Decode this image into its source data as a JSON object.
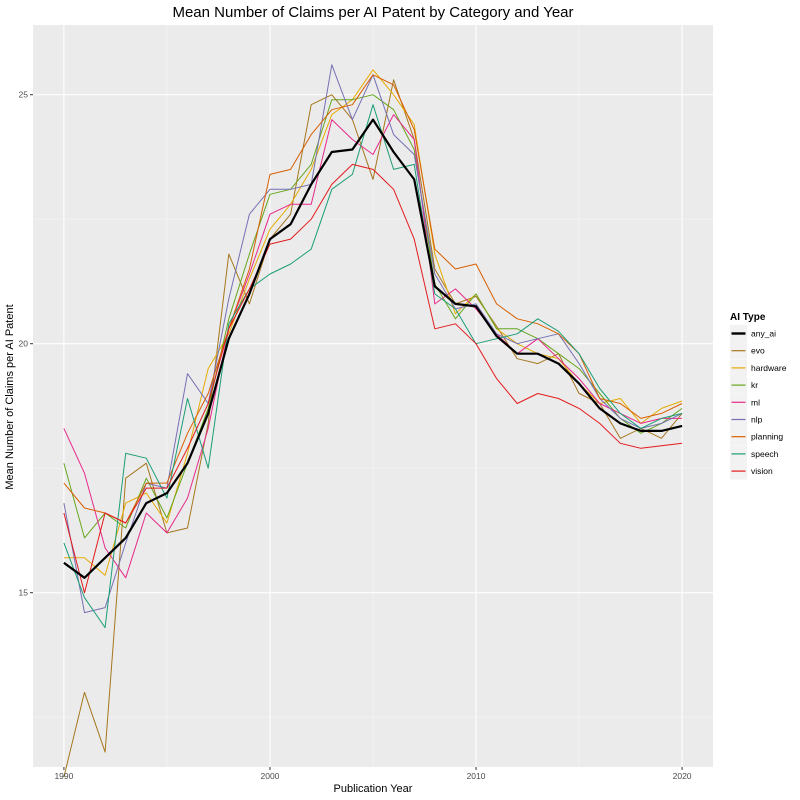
{
  "chart_data": {
    "type": "line",
    "title": "Mean Number of Claims per AI Patent by Category and Year",
    "xlabel": "Publication Year",
    "ylabel": "Mean Number of Claims per AI Patent",
    "xlim": [
      1988.5,
      2021.5
    ],
    "ylim": [
      11.5,
      26.4
    ],
    "xticks": [
      1990,
      2000,
      2010,
      2020
    ],
    "yticks": [
      15,
      20,
      25
    ],
    "grid": true,
    "legend": {
      "title": "AI Type",
      "position": "right"
    },
    "x": [
      1990,
      1991,
      1992,
      1993,
      1994,
      1995,
      1996,
      1997,
      1998,
      1999,
      2000,
      2001,
      2002,
      2003,
      2004,
      2005,
      2006,
      2007,
      2008,
      2009,
      2010,
      2011,
      2012,
      2013,
      2014,
      2015,
      2016,
      2017,
      2018,
      2019,
      2020
    ],
    "series": [
      {
        "name": "any_ai",
        "color": "#000000",
        "width": 2.2,
        "values": [
          15.6,
          15.3,
          15.7,
          16.1,
          16.8,
          17.0,
          17.6,
          18.6,
          20.1,
          21.0,
          22.1,
          22.4,
          23.2,
          23.85,
          23.9,
          24.5,
          23.85,
          23.3,
          21.15,
          20.8,
          20.75,
          20.15,
          19.8,
          19.8,
          19.6,
          19.2,
          18.7,
          18.4,
          18.25,
          18.25,
          18.35
        ]
      },
      {
        "name": "evo",
        "color": "#a6761d",
        "width": 1,
        "values": [
          11.3,
          13.0,
          11.8,
          17.3,
          17.6,
          16.2,
          16.3,
          18.4,
          21.8,
          20.8,
          22.1,
          22.6,
          24.8,
          25.0,
          24.5,
          23.3,
          25.3,
          24.1,
          21.5,
          20.8,
          20.95,
          20.35,
          19.7,
          19.6,
          19.8,
          19.0,
          18.8,
          18.1,
          18.3,
          18.1,
          18.6
        ]
      },
      {
        "name": "hardware",
        "color": "#e6ab02",
        "width": 1,
        "values": [
          15.7,
          15.7,
          15.35,
          16.8,
          17.0,
          16.4,
          17.8,
          19.5,
          20.2,
          21.3,
          22.3,
          22.8,
          23.5,
          24.6,
          24.9,
          25.5,
          25.0,
          24.4,
          21.8,
          20.6,
          21.0,
          20.3,
          20.0,
          19.8,
          19.7,
          19.2,
          18.8,
          18.9,
          18.4,
          18.7,
          18.85
        ]
      },
      {
        "name": "kr",
        "color": "#66a61e",
        "width": 1,
        "values": [
          17.6,
          16.1,
          16.6,
          16.3,
          17.3,
          16.5,
          17.6,
          18.7,
          20.5,
          21.8,
          23.0,
          23.1,
          23.6,
          24.9,
          24.9,
          25.0,
          24.7,
          23.9,
          21.2,
          20.5,
          21.0,
          20.3,
          20.3,
          20.1,
          19.8,
          19.5,
          19.0,
          18.5,
          18.2,
          18.4,
          18.7
        ]
      },
      {
        "name": "ml",
        "color": "#e7298a",
        "width": 1,
        "values": [
          18.3,
          17.4,
          15.9,
          15.3,
          16.6,
          16.2,
          16.9,
          18.3,
          20.3,
          21.4,
          22.6,
          22.8,
          22.8,
          24.5,
          24.1,
          23.8,
          24.6,
          24.1,
          20.8,
          21.1,
          20.7,
          20.2,
          19.8,
          20.1,
          19.7,
          19.3,
          18.8,
          18.6,
          18.4,
          18.5,
          18.5
        ]
      },
      {
        "name": "nlp",
        "color": "#7570b3",
        "width": 1,
        "values": [
          16.8,
          14.6,
          14.7,
          16.0,
          17.2,
          17.1,
          19.4,
          18.8,
          20.9,
          22.6,
          23.1,
          23.1,
          23.2,
          25.6,
          24.5,
          25.4,
          24.2,
          23.8,
          21.4,
          20.7,
          20.8,
          20.2,
          20.0,
          20.1,
          20.2,
          19.6,
          18.9,
          18.5,
          18.3,
          18.4,
          18.6
        ]
      },
      {
        "name": "planning",
        "color": "#d95f02",
        "width": 1,
        "values": [
          17.2,
          16.7,
          16.6,
          16.4,
          17.2,
          17.2,
          18.2,
          19.0,
          20.3,
          21.5,
          23.4,
          23.5,
          24.2,
          24.7,
          24.8,
          25.4,
          25.2,
          24.3,
          21.9,
          21.5,
          21.6,
          20.8,
          20.5,
          20.4,
          20.2,
          19.8,
          18.9,
          18.8,
          18.5,
          18.6,
          18.8
        ]
      },
      {
        "name": "speech",
        "color": "#1b9e77",
        "width": 1,
        "values": [
          16.0,
          14.9,
          14.3,
          17.8,
          17.7,
          16.9,
          18.9,
          17.5,
          20.4,
          21.1,
          21.4,
          21.6,
          21.9,
          23.1,
          23.4,
          24.8,
          23.5,
          23.6,
          21.0,
          20.7,
          20.0,
          20.1,
          20.2,
          20.5,
          20.25,
          19.8,
          19.1,
          18.6,
          18.3,
          18.5,
          18.6
        ]
      },
      {
        "name": "vision",
        "color": "#e41a1c",
        "width": 1,
        "values": [
          16.6,
          15.0,
          16.6,
          16.4,
          17.1,
          17.1,
          17.9,
          18.8,
          20.3,
          21.1,
          22.0,
          22.1,
          22.5,
          23.2,
          23.6,
          23.5,
          23.1,
          22.1,
          20.3,
          20.4,
          20.0,
          19.3,
          18.8,
          19.0,
          18.9,
          18.7,
          18.4,
          18.0,
          17.9,
          17.95,
          18.0
        ]
      }
    ]
  }
}
